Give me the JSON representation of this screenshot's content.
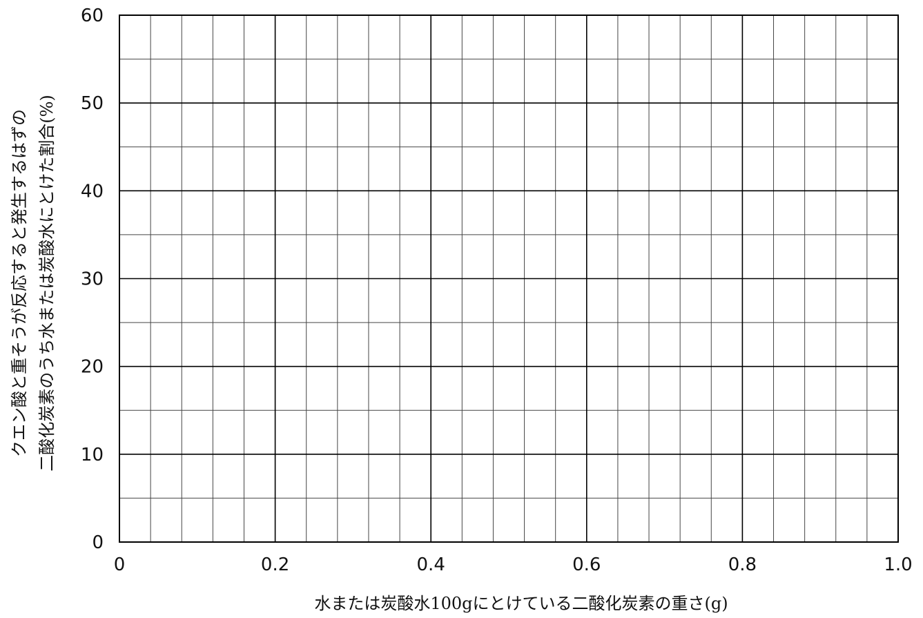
{
  "chart_data": {
    "type": "line",
    "title": "",
    "xlabel": "水または炭酸水100gにとけている二酸化炭素の重さ(g)",
    "ylabel_line1": "クエン酸と重そうが反応すると発生するはずの",
    "ylabel_line2": "二酸化炭素のうち水または炭酸水にとけた割合(%)",
    "xlim": [
      0,
      1.0
    ],
    "ylim": [
      0,
      60
    ],
    "x_ticks": [
      "0",
      "0.2",
      "0.4",
      "0.6",
      "0.8",
      "1.0"
    ],
    "y_ticks": [
      "0",
      "10",
      "20",
      "30",
      "40",
      "50",
      "60"
    ],
    "minor_x_step": 0.04,
    "minor_y_step": 5,
    "grid": true,
    "series": []
  }
}
